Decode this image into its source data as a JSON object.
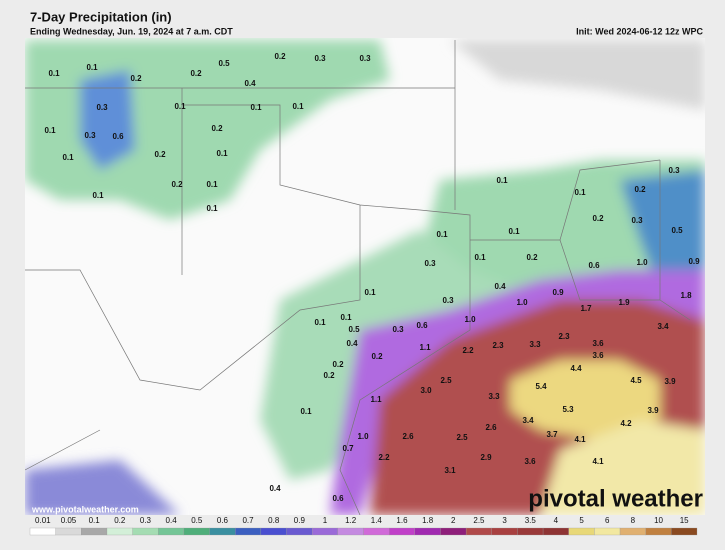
{
  "header": {
    "title": "7-Day Precipitation (in)",
    "subtitle": "Ending Wednesday, Jun. 19, 2024 at 7 a.m. CDT",
    "init": "Init: Wed 2024-06-12 12z WPC"
  },
  "map_labels": [
    "0.1",
    "0.1",
    "0.2",
    "0.2",
    "0.5",
    "0.2",
    "0.3",
    "0.3",
    "0.4",
    "0.3",
    "0.1",
    "0.1",
    "0.1",
    "0.1",
    "0.3",
    "0.6",
    "0.2",
    "0.2",
    "0.1",
    "0.1",
    "0.2",
    "0.1",
    "0.1",
    "0.1",
    "0.1",
    "0.2",
    "0.3",
    "0.1",
    "0.1",
    "0.1",
    "0.2",
    "0.3",
    "0.5",
    "0.3",
    "0.1",
    "0.2",
    "0.6",
    "1.0",
    "0.9",
    "0.4",
    "0.1",
    "0.3",
    "0.9",
    "1.8",
    "1.0",
    "1.9",
    "1.7",
    "0.1",
    "0.1",
    "0.6",
    "1.0",
    "0.5",
    "0.3",
    "0.4",
    "0.2",
    "3.4",
    "2.3",
    "3.6",
    "1.1",
    "2.2",
    "2.3",
    "3.3",
    "3.6",
    "0.2",
    "0.2",
    "4.4",
    "4.5",
    "3.9",
    "2.5",
    "5.4",
    "3.0",
    "3.3",
    "1.1",
    "0.1",
    "5.3",
    "3.9",
    "3.4",
    "2.6",
    "4.2",
    "3.7",
    "4.1",
    "2.6",
    "2.5",
    "1.0",
    "0.7",
    "2.2",
    "2.9",
    "3.6",
    "4.1",
    "3.1",
    "0.4",
    "0.6"
  ],
  "scale": {
    "labels": [
      "0.01",
      "0.05",
      "0.1",
      "0.2",
      "0.3",
      "0.4",
      "0.5",
      "0.6",
      "0.7",
      "0.8",
      "0.9",
      "1",
      "1.2",
      "1.4",
      "1.6",
      "1.8",
      "2",
      "2.5",
      "3",
      "3.5",
      "4",
      "5",
      "6",
      "8",
      "10",
      "15"
    ],
    "colors": [
      "#ffffff",
      "#d9d9d9",
      "#a8a8a8",
      "#d3efd8",
      "#a4dcb2",
      "#74c596",
      "#4fae7a",
      "#3a8fa0",
      "#3b5fc0",
      "#4a4fd0",
      "#6a5ad0",
      "#9a6ad8",
      "#c48ae0",
      "#d06ad8",
      "#c040c8",
      "#a02ab0",
      "#8e1f7a",
      "#b04a4a",
      "#a84040",
      "#9a3a3a",
      "#8e3434",
      "#e8d878",
      "#f2e8a0",
      "#e0b070",
      "#c08040",
      "#8a4a20"
    ]
  },
  "watermark": "pivotal weather",
  "url": "www.pivotalweather.com"
}
